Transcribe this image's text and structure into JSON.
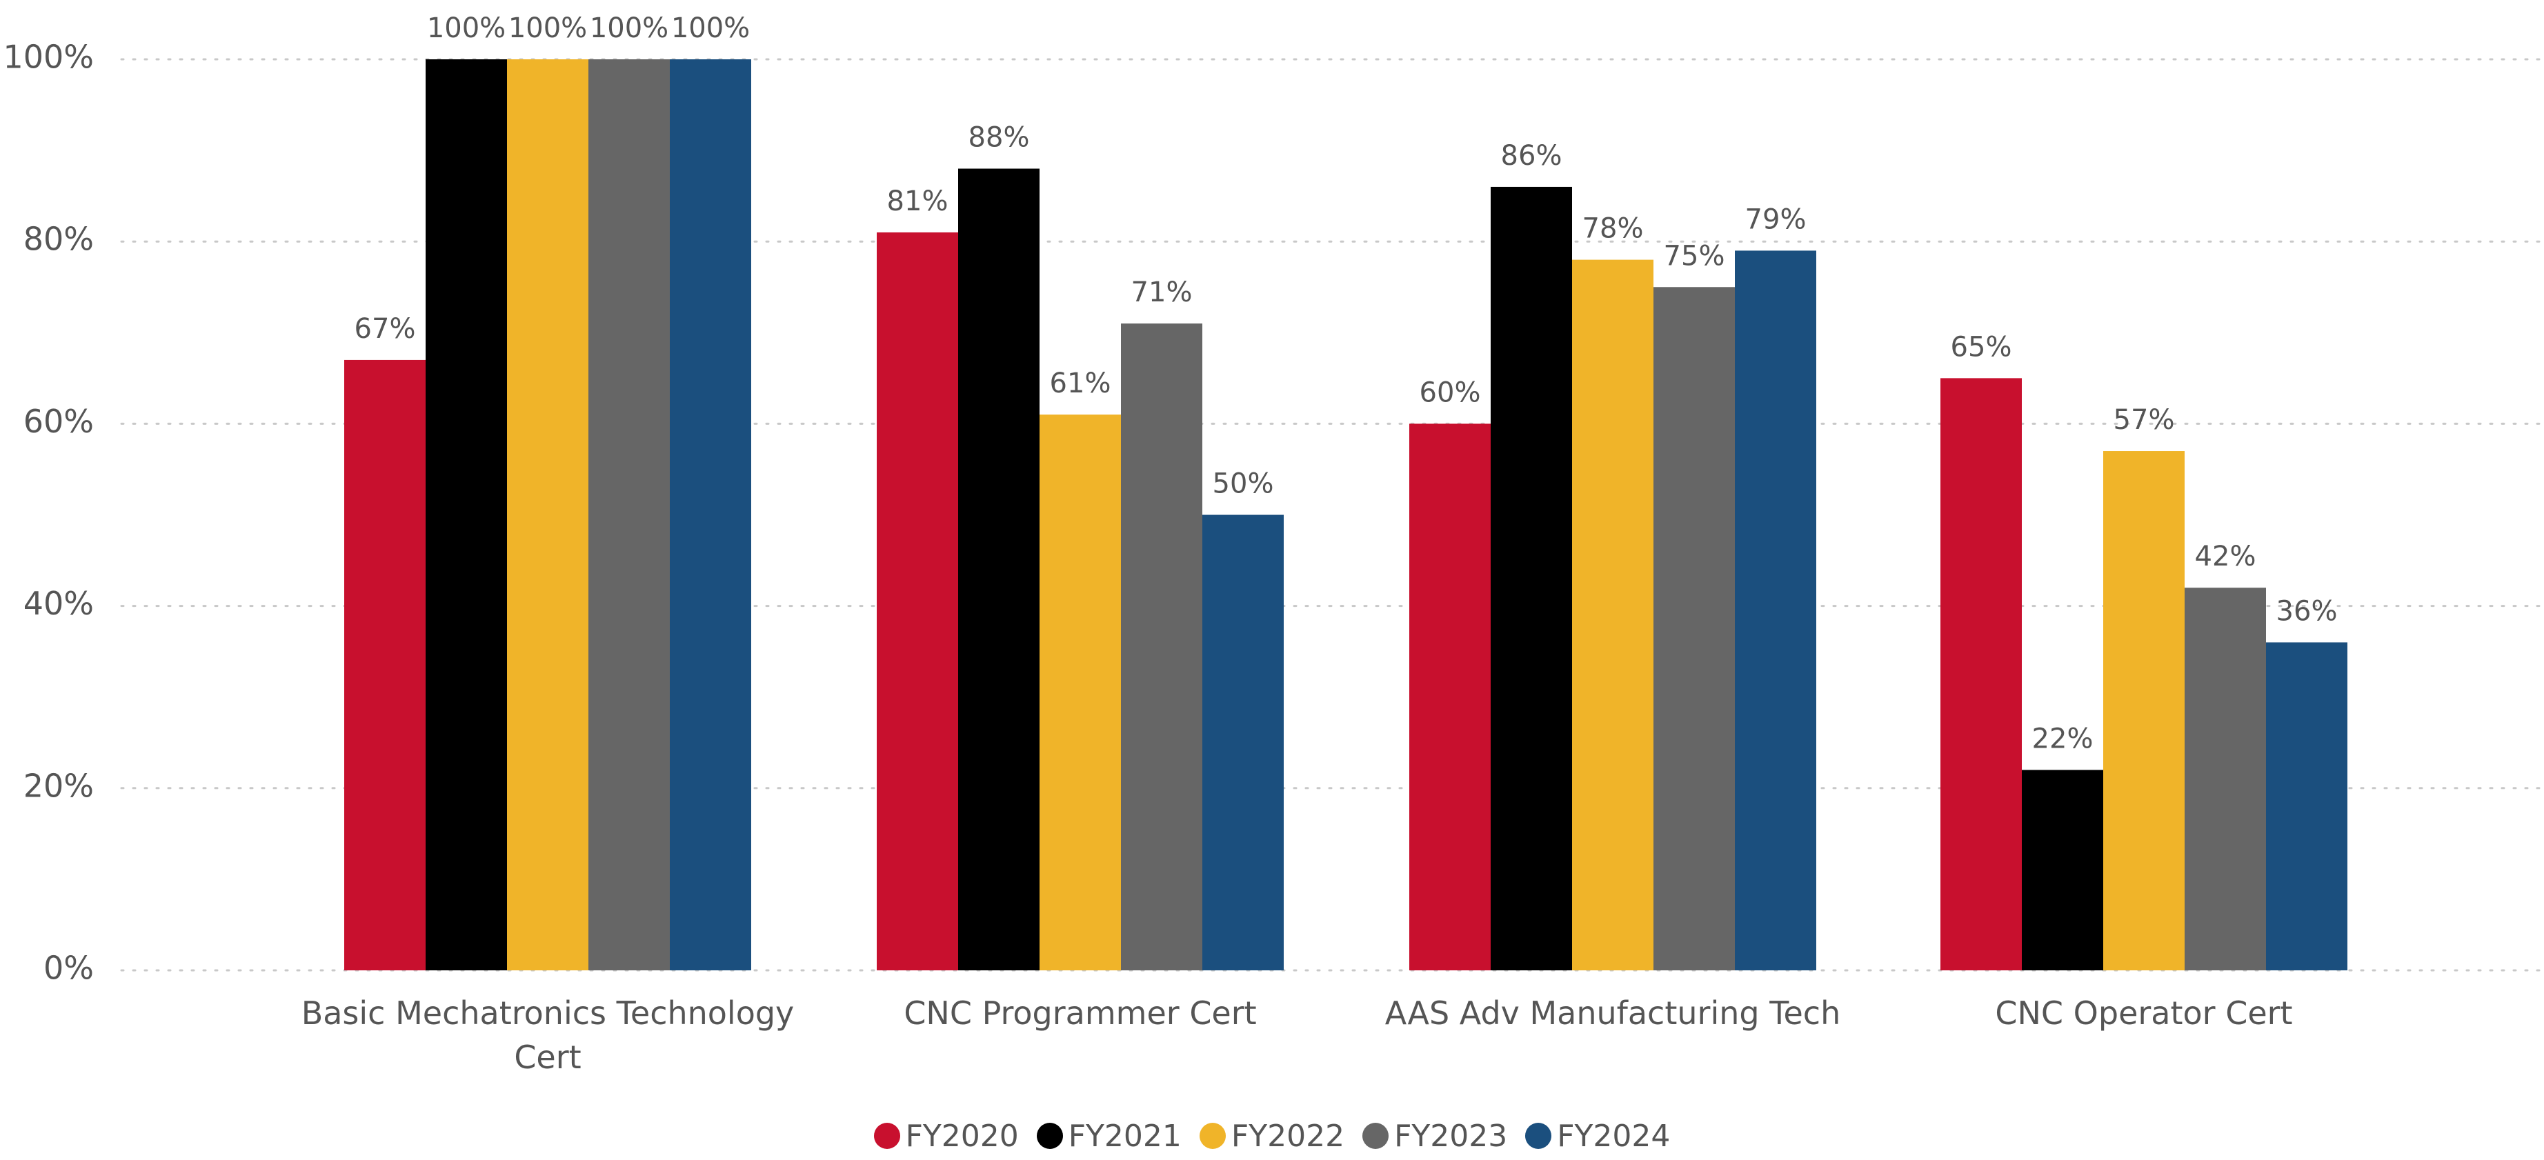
{
  "chart_data": {
    "type": "bar",
    "categories": [
      [
        "Basic Mechatronics Technology",
        "Cert"
      ],
      [
        "CNC Programmer Cert"
      ],
      [
        "AAS Adv Manufacturing Tech"
      ],
      [
        "CNC Operator Cert"
      ]
    ],
    "series": [
      {
        "name": "FY2020",
        "color": "#C8102E",
        "values": [
          67,
          81,
          60,
          65
        ],
        "labels": [
          "67%",
          "81%",
          "60%",
          "65%"
        ]
      },
      {
        "name": "FY2021",
        "color": "#000000",
        "values": [
          100,
          88,
          86,
          22
        ],
        "labels": [
          "100%",
          "88%",
          "86%",
          "22%"
        ]
      },
      {
        "name": "FY2022",
        "color": "#F0B429",
        "values": [
          100,
          61,
          78,
          57
        ],
        "labels": [
          "100%",
          "61%",
          "78%",
          "57%"
        ]
      },
      {
        "name": "FY2023",
        "color": "#666666",
        "values": [
          100,
          71,
          75,
          42
        ],
        "labels": [
          "100%",
          "71%",
          "75%",
          "42%"
        ]
      },
      {
        "name": "FY2024",
        "color": "#1B4F7E",
        "values": [
          100,
          50,
          79,
          36
        ],
        "labels": [
          "100%",
          "50%",
          "79%",
          "36%"
        ]
      }
    ],
    "y_ticks": [
      "0%",
      "20%",
      "40%",
      "60%",
      "80%",
      "100%"
    ],
    "y_tick_values": [
      0,
      20,
      40,
      60,
      80,
      100
    ],
    "ylim": [
      0,
      100
    ],
    "grid": true,
    "legend_position": "bottom-center",
    "title": "",
    "xlabel": "",
    "ylabel": ""
  }
}
